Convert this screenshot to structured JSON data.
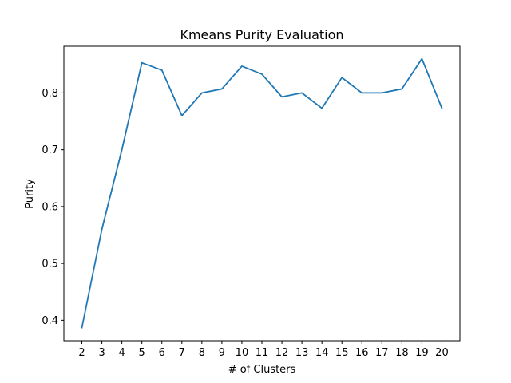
{
  "chart_data": {
    "type": "line",
    "title": "Kmeans Purity Evaluation",
    "xlabel": "# of Clusters",
    "ylabel": "Purity",
    "xlim": [
      1.1,
      20.9
    ],
    "ylim": [
      0.364,
      0.882
    ],
    "x_ticks": [
      2,
      3,
      4,
      5,
      6,
      7,
      8,
      9,
      10,
      11,
      12,
      13,
      14,
      15,
      16,
      17,
      18,
      19,
      20
    ],
    "y_ticks": [
      0.4,
      0.5,
      0.6,
      0.7,
      0.8
    ],
    "y_tick_labels": [
      "0.4",
      "0.5",
      "0.6",
      "0.7",
      "0.8"
    ],
    "grid": false,
    "legend": "none",
    "series": [
      {
        "color": "#1f77b4",
        "x": [
          2,
          3,
          4,
          5,
          6,
          7,
          8,
          9,
          10,
          11,
          12,
          13,
          14,
          15,
          16,
          17,
          18,
          19,
          20
        ],
        "y": [
          0.387,
          0.56,
          0.7,
          0.853,
          0.84,
          0.76,
          0.8,
          0.807,
          0.847,
          0.833,
          0.793,
          0.8,
          0.773,
          0.827,
          0.8,
          0.8,
          0.807,
          0.86,
          0.773
        ]
      }
    ]
  }
}
